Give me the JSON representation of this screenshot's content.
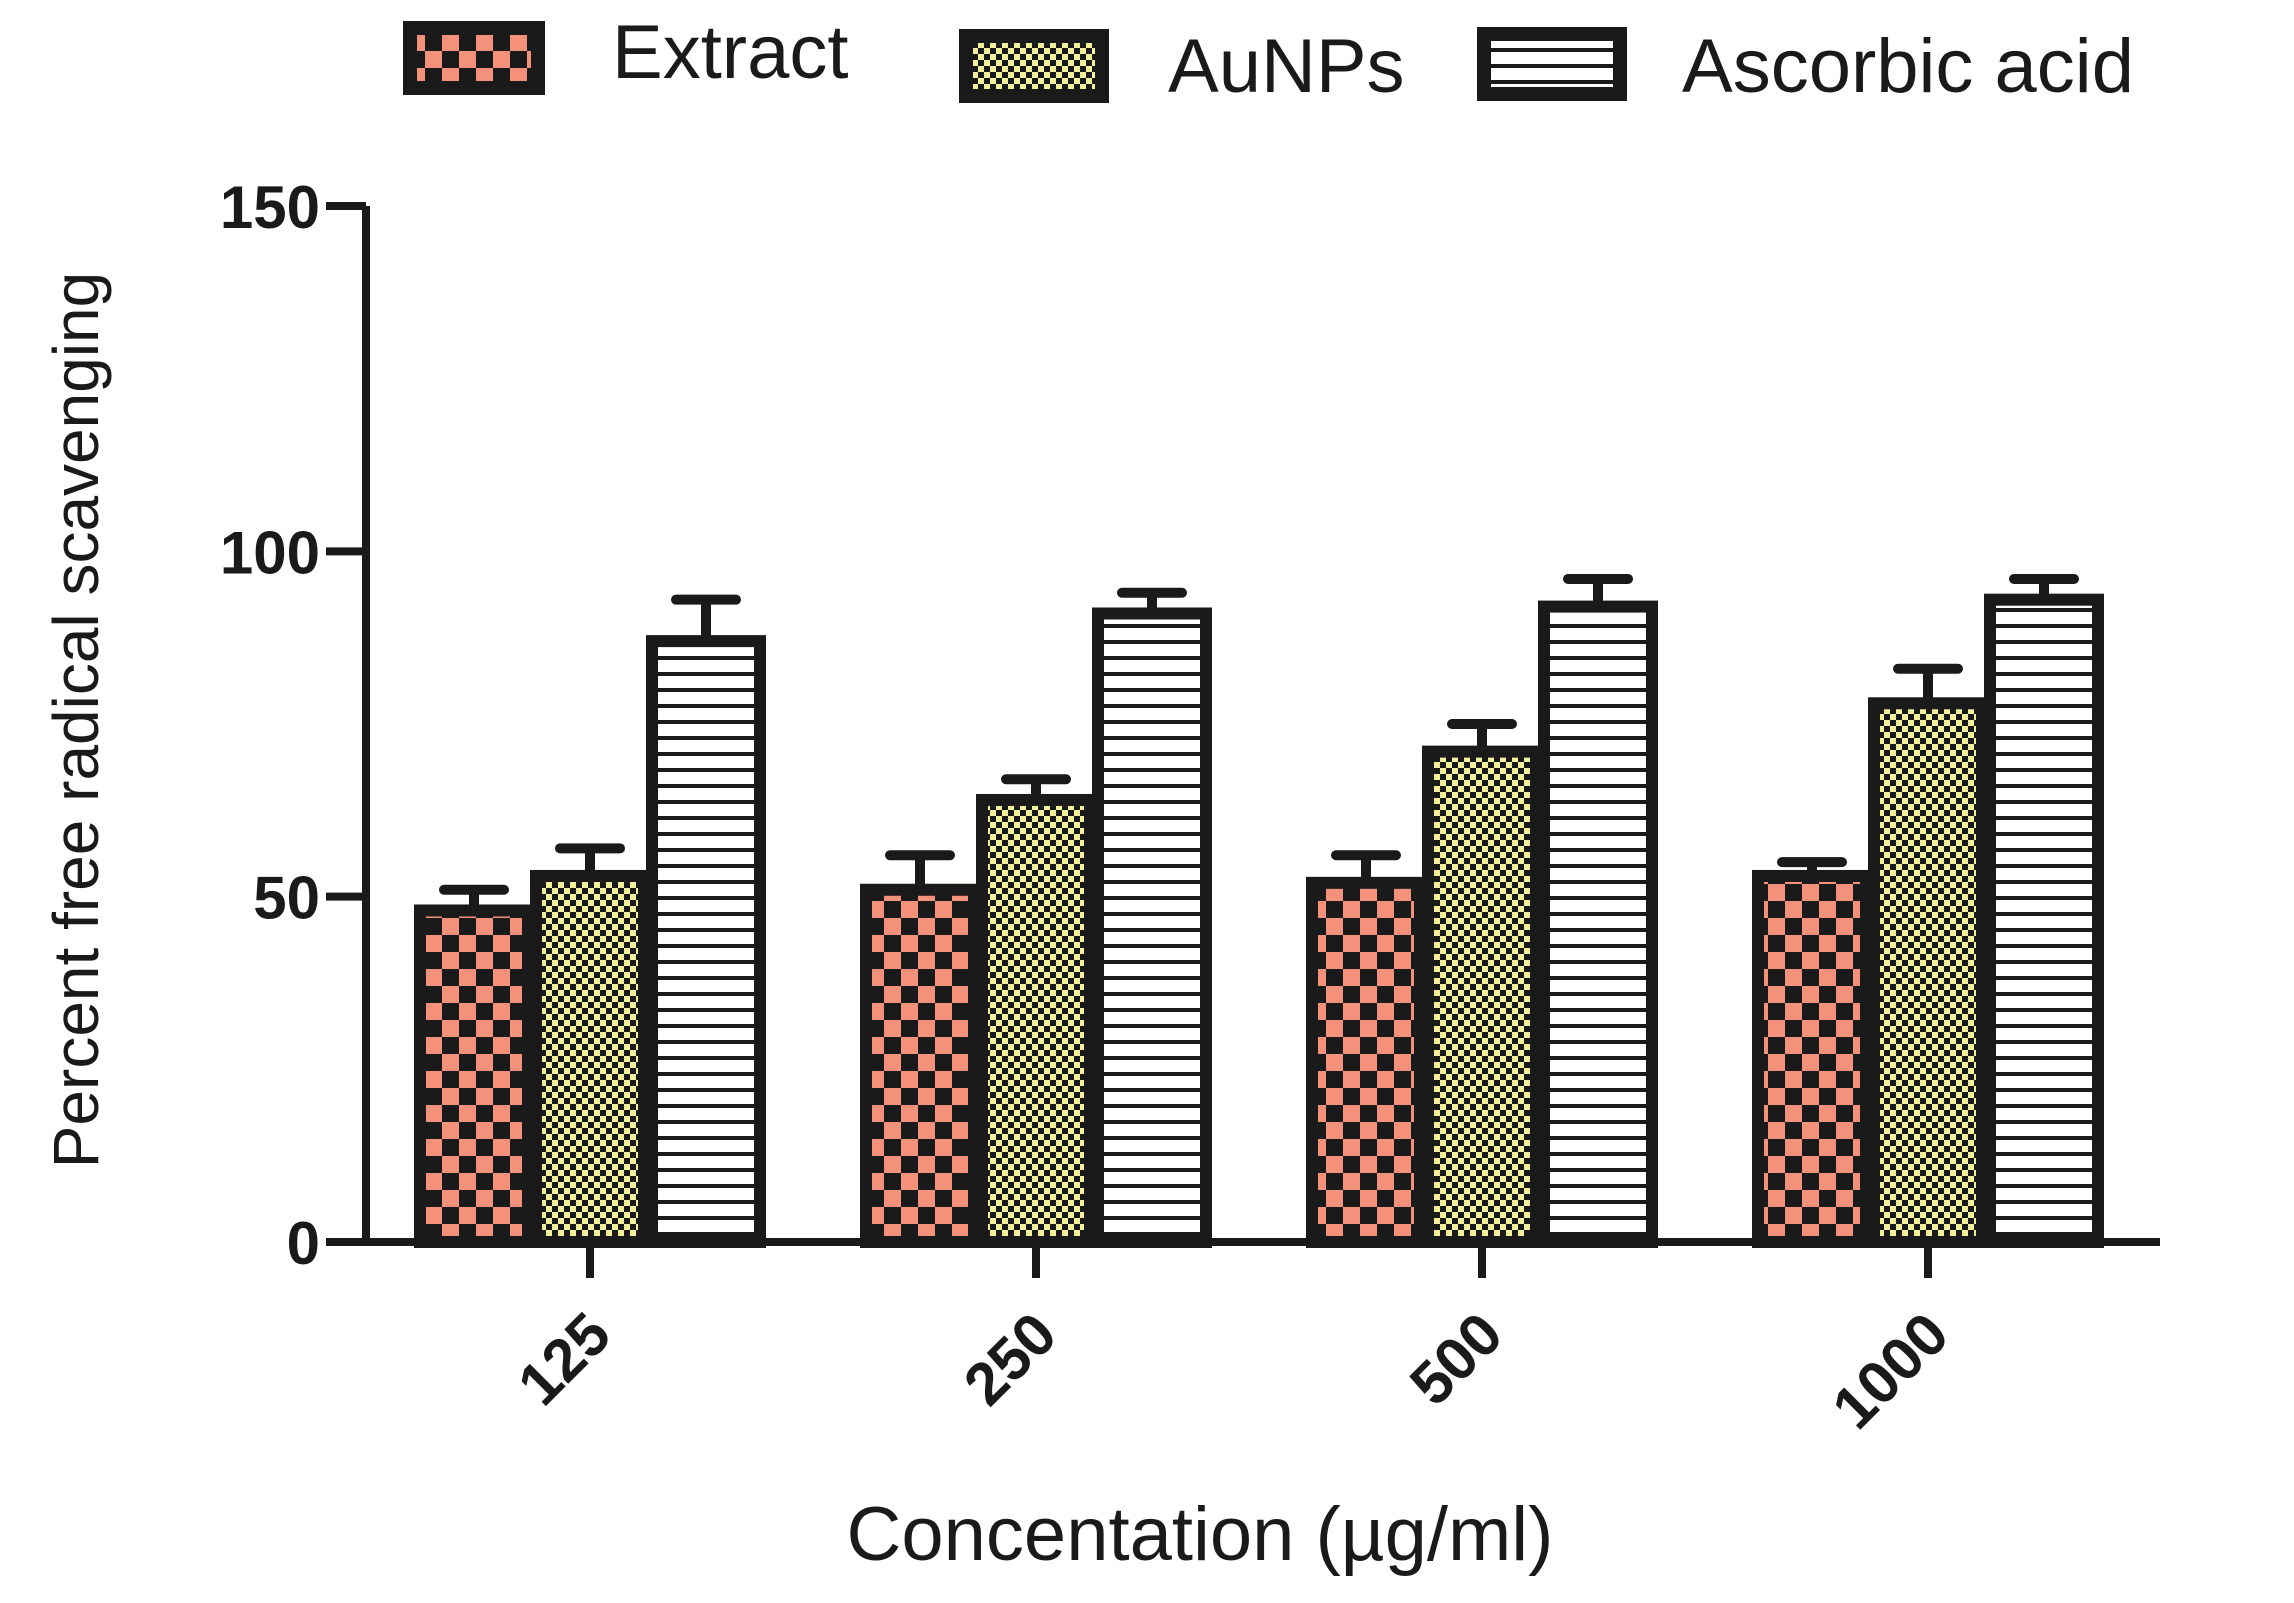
{
  "chart_data": {
    "type": "bar",
    "title": "",
    "xlabel": "Concentation (µg/ml)",
    "ylabel": "Percent free radical scavenging",
    "categories": [
      "125",
      "250",
      "500",
      "1000"
    ],
    "ylim": [
      0,
      150
    ],
    "yticks": [
      "0",
      "50",
      "100",
      "150"
    ],
    "grid": false,
    "legend_position": "top",
    "series": [
      {
        "name": "Extract",
        "pattern": "checker",
        "color": "#f4917a",
        "values": [
          48,
          51,
          52,
          53
        ],
        "errors": [
          3,
          5,
          4,
          2
        ]
      },
      {
        "name": "AuNPs",
        "pattern": "fine-checker",
        "color": "#f3f09a",
        "values": [
          53,
          64,
          71,
          78
        ],
        "errors": [
          4,
          3,
          4,
          5
        ]
      },
      {
        "name": "Ascorbic acid",
        "pattern": "horizontal-stripes",
        "color": "#ffffff",
        "values": [
          87,
          91,
          92,
          93
        ],
        "errors": [
          6,
          3,
          4,
          3
        ]
      }
    ]
  }
}
